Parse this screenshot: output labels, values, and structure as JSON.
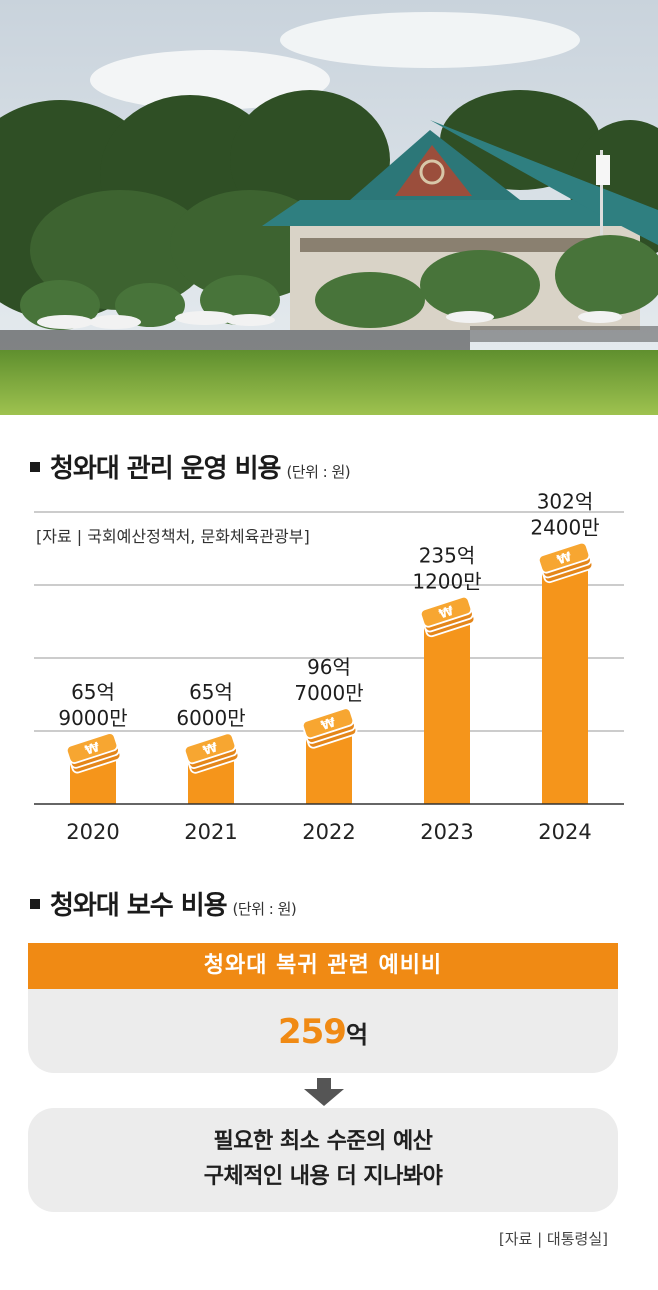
{
  "section1": {
    "title": "청와대 관리 운영 비용",
    "unit": "(단위 : 원)",
    "source": "[자료 | 국회예산정책처, 문화체육관광부]"
  },
  "chart_data": {
    "type": "bar",
    "title": "청와대 관리 운영 비용",
    "unit": "(단위 : 원)",
    "categories": [
      "2020",
      "2021",
      "2022",
      "2023",
      "2024"
    ],
    "values": [
      6590000000,
      6560000000,
      9670000000,
      23512000000,
      30224000000
    ],
    "data_labels": [
      [
        "65억",
        "9000만"
      ],
      [
        "65억",
        "6000만"
      ],
      [
        "96억",
        "7000만"
      ],
      [
        "235억",
        "1200만"
      ],
      [
        "302억",
        "2400만"
      ]
    ],
    "ylim": [
      0,
      36000000000
    ],
    "grid": true,
    "bar_color": "#f5951b",
    "coin_color": "#f7a631"
  },
  "section2": {
    "title": "청와대 보수 비용",
    "unit": "(단위 : 원)",
    "band_label": "청와대 복귀 관련 예비비",
    "amount_number": "259",
    "amount_unit": "억",
    "line1": "필요한 최소 수준의 예산",
    "line2": "구체적인 내용 더 지나봐야",
    "source": "[자료 | 대통령실]"
  }
}
